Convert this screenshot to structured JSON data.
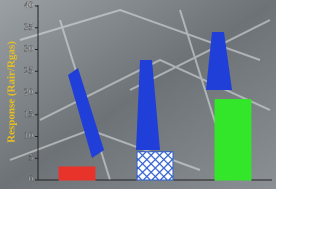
{
  "chart_data": {
    "type": "bar",
    "ylabel": "Response (Rair/Rgas)",
    "categories": [
      null,
      null,
      null
    ],
    "values": [
      3,
      6.5,
      18.5
    ],
    "colors": [
      "#e8332a",
      "#2f5fd0",
      "#33e62a"
    ],
    "hatched": [
      false,
      true,
      false
    ],
    "ylim": [
      0,
      40
    ],
    "yticks": [
      0,
      5,
      10,
      15,
      20,
      25,
      30,
      35,
      40
    ]
  }
}
